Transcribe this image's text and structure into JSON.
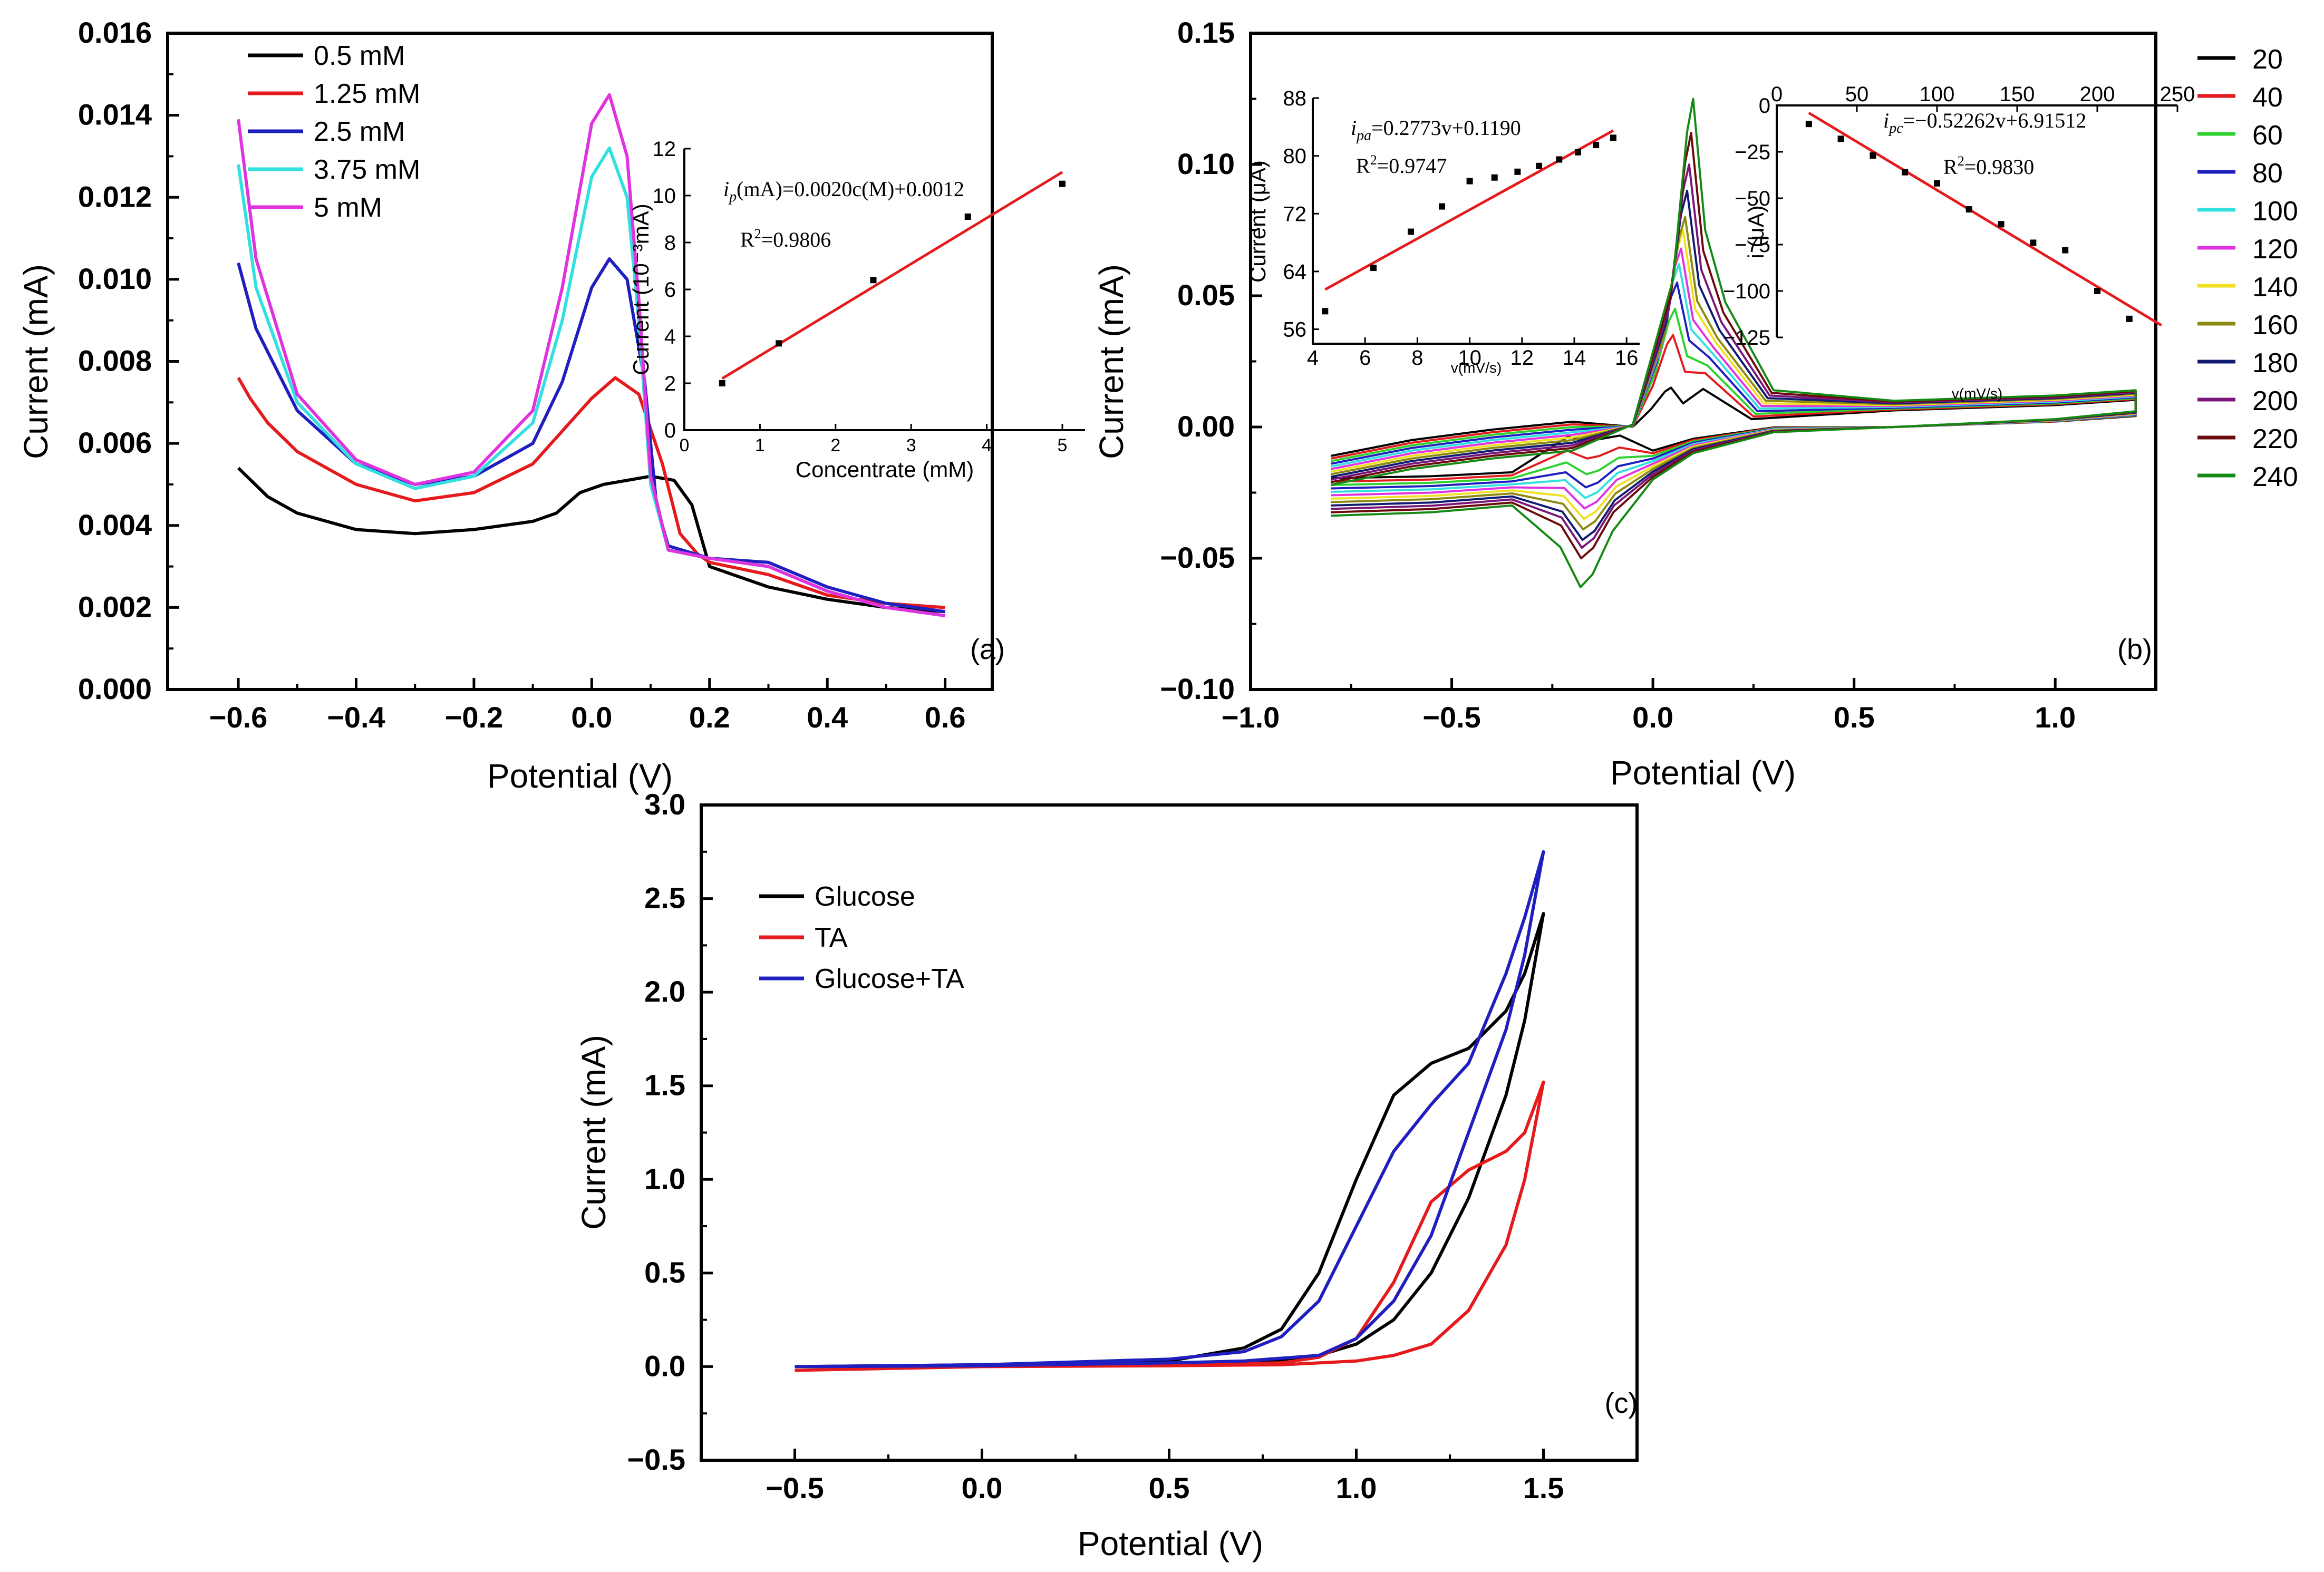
{
  "colors": {
    "black": "#000000",
    "red": "#e41a1c",
    "blue": "#1f1fbf",
    "cyan": "#33e0e0",
    "magenta": "#e033e0",
    "fit": "#e41a1c",
    "scan": [
      "#000000",
      "#e41a1c",
      "#2fd12f",
      "#1f1fbf",
      "#33e0e0",
      "#e033e0",
      "#f0e020",
      "#8a8a10",
      "#101a70",
      "#7a157a",
      "#6a0a0a",
      "#148a14"
    ]
  },
  "panels": {
    "a": {
      "label": "(a)",
      "chart_data": {
        "type": "line",
        "xlabel": "Potential (V)",
        "ylabel": "Current (mA)",
        "xlim": [
          -0.72,
          0.68
        ],
        "ylim": [
          0.0,
          0.016
        ],
        "xticks": [
          "−0.6",
          "−0.4",
          "−0.2",
          "0.0",
          "0.2",
          "0.4",
          "0.6"
        ],
        "yticks": [
          "0.000",
          "0.002",
          "0.004",
          "0.006",
          "0.008",
          "0.010",
          "0.012",
          "0.014",
          "0.016"
        ],
        "legend_position": "top-left",
        "series": [
          {
            "name": "0.5 mM",
            "color": "#000000",
            "x": [
              -0.6,
              -0.55,
              -0.5,
              -0.4,
              -0.3,
              -0.2,
              -0.1,
              -0.06,
              -0.02,
              0.02,
              0.06,
              0.1,
              0.14,
              0.17,
              0.2,
              0.3,
              0.4,
              0.5,
              0.6
            ],
            "y": [
              0.0054,
              0.0047,
              0.0043,
              0.0039,
              0.0038,
              0.0039,
              0.0041,
              0.0043,
              0.0048,
              0.005,
              0.0051,
              0.0052,
              0.0051,
              0.0045,
              0.003,
              0.0025,
              0.0022,
              0.002,
              0.0019
            ]
          },
          {
            "name": "1.25 mM",
            "color": "#e41a1c",
            "x": [
              -0.6,
              -0.58,
              -0.55,
              -0.5,
              -0.4,
              -0.3,
              -0.2,
              -0.1,
              0.0,
              0.04,
              0.08,
              0.12,
              0.15,
              0.18,
              0.2,
              0.3,
              0.4,
              0.5,
              0.6
            ],
            "y": [
              0.0076,
              0.0071,
              0.0065,
              0.0058,
              0.005,
              0.0046,
              0.0048,
              0.0055,
              0.0071,
              0.0076,
              0.0072,
              0.0055,
              0.0038,
              0.0033,
              0.0031,
              0.0028,
              0.0023,
              0.0021,
              0.002
            ]
          },
          {
            "name": "2.5 mM",
            "color": "#1f1fbf",
            "x": [
              -0.6,
              -0.57,
              -0.5,
              -0.4,
              -0.3,
              -0.2,
              -0.1,
              -0.05,
              0.0,
              0.03,
              0.06,
              0.09,
              0.11,
              0.13,
              0.2,
              0.3,
              0.4,
              0.5,
              0.6
            ],
            "y": [
              0.0104,
              0.0088,
              0.0068,
              0.0055,
              0.005,
              0.0052,
              0.006,
              0.0075,
              0.0098,
              0.0105,
              0.01,
              0.0075,
              0.0045,
              0.0035,
              0.0032,
              0.0031,
              0.0025,
              0.0021,
              0.0019
            ]
          },
          {
            "name": "3.75 mM",
            "color": "#33e0e0",
            "x": [
              -0.6,
              -0.57,
              -0.5,
              -0.4,
              -0.3,
              -0.2,
              -0.1,
              -0.05,
              0.0,
              0.03,
              0.06,
              0.08,
              0.1,
              0.13,
              0.2,
              0.3,
              0.4,
              0.5,
              0.6
            ],
            "y": [
              0.0128,
              0.0098,
              0.007,
              0.0055,
              0.0049,
              0.0052,
              0.0065,
              0.009,
              0.0125,
              0.0132,
              0.012,
              0.009,
              0.005,
              0.0034,
              0.0032,
              0.003,
              0.0024,
              0.002,
              0.0018
            ]
          },
          {
            "name": "5 mM",
            "color": "#e033e0",
            "x": [
              -0.6,
              -0.57,
              -0.5,
              -0.4,
              -0.3,
              -0.2,
              -0.1,
              -0.05,
              0.0,
              0.03,
              0.06,
              0.08,
              0.1,
              0.13,
              0.2,
              0.3,
              0.4,
              0.5,
              0.6
            ],
            "y": [
              0.0139,
              0.0105,
              0.0072,
              0.0056,
              0.005,
              0.0053,
              0.0068,
              0.0098,
              0.0138,
              0.0145,
              0.013,
              0.0095,
              0.0052,
              0.0034,
              0.0032,
              0.003,
              0.0024,
              0.002,
              0.0018
            ]
          }
        ]
      },
      "inset": {
        "type": "scatter",
        "xlabel": "Concentrate (mM)",
        "ylabel": "Current (10⁻³mA)",
        "xlim": [
          0,
          5.3
        ],
        "ylim": [
          0,
          12
        ],
        "xticks": [
          "0",
          "1",
          "2",
          "3",
          "4",
          "5"
        ],
        "yticks": [
          "0",
          "2",
          "4",
          "6",
          "8",
          "10",
          "12"
        ],
        "points_x": [
          0.5,
          1.25,
          2.5,
          3.75,
          5.0
        ],
        "points_y": [
          2.0,
          3.7,
          6.4,
          9.1,
          10.5
        ],
        "fit_x": [
          0.5,
          5.0
        ],
        "fit_y": [
          2.2,
          11.0
        ],
        "eq_i": "i",
        "eq_sub": "p",
        "eq_rest": "(mA)=0.0020c(M)+0.0012",
        "r2_pre": "R",
        "r2_sup": "2",
        "r2_val": "=0.9806"
      }
    },
    "b": {
      "label": "(b)",
      "chart_data": {
        "type": "line",
        "xlabel": "Potential (V)",
        "ylabel": "Current (mA)",
        "xlim": [
          -1.0,
          1.25
        ],
        "ylim": [
          -0.1,
          0.15
        ],
        "xticks": [
          "−1.0",
          "−0.5",
          "0.0",
          "0.5",
          "1.0"
        ],
        "yticks": [
          "−0.10",
          "−0.05",
          "0.00",
          "0.05",
          "0.10",
          "0.15"
        ],
        "legend_position": "right",
        "legend": [
          "20",
          "40",
          "60",
          "80",
          "100",
          "120",
          "140",
          "160",
          "180",
          "200",
          "220",
          "240"
        ],
        "scan_rates": [
          20,
          40,
          60,
          80,
          100,
          120,
          140,
          160,
          180,
          200,
          220,
          240
        ],
        "anodic_peaks": [
          0.015,
          0.035,
          0.045,
          0.055,
          0.062,
          0.068,
          0.075,
          0.08,
          0.09,
          0.1,
          0.112,
          0.125
        ],
        "cathodic_peaks": [
          -0.005,
          -0.012,
          -0.018,
          -0.023,
          -0.027,
          -0.031,
          -0.035,
          -0.039,
          -0.043,
          -0.046,
          -0.05,
          -0.061
        ]
      },
      "inset_left": {
        "type": "scatter",
        "xlabel": "v(mV/s)",
        "ylabel": "Current (μA)",
        "xlim": [
          4,
          16.5
        ],
        "ylim": [
          54,
          88
        ],
        "xticks": [
          "4",
          "6",
          "8",
          "10",
          "12",
          "14",
          "16"
        ],
        "yticks": [
          "56",
          "64",
          "72",
          "80",
          "88"
        ],
        "points_x": [
          4.47,
          6.32,
          7.75,
          8.94,
          10.0,
          10.95,
          11.83,
          12.65,
          13.42,
          14.14,
          14.83,
          15.49
        ],
        "points_y": [
          58.5,
          64.5,
          69.5,
          73.0,
          76.5,
          77.0,
          77.8,
          78.6,
          79.5,
          80.5,
          81.5,
          82.5
        ],
        "fit_x": [
          4.47,
          15.49
        ],
        "fit_y": [
          61.5,
          83.5
        ],
        "eq_i": "i",
        "eq_sub": "pa",
        "eq_rest": "=0.2773v+0.1190",
        "r2_pre": "R",
        "r2_sup": "2",
        "r2_val": "=0.9747"
      },
      "inset_right": {
        "type": "scatter",
        "xlabel": "v(mV/s)",
        "ylabel": "i (μA)",
        "xlim": [
          0,
          250
        ],
        "ylim": [
          -125,
          0
        ],
        "xticks": [
          "0",
          "50",
          "100",
          "150",
          "200",
          "250"
        ],
        "yticks": [
          "0",
          "−25",
          "−50",
          "−75",
          "−100",
          "−125"
        ],
        "points_x": [
          20,
          40,
          60,
          80,
          100,
          120,
          140,
          160,
          180,
          200,
          220
        ],
        "points_y": [
          -10,
          -18,
          -27,
          -36,
          -42,
          -56,
          -64,
          -74,
          -78,
          -100,
          -115
        ],
        "fit_x": [
          20,
          240
        ],
        "fit_y": [
          -4.0,
          -118.5
        ],
        "eq_i": "i",
        "eq_sub": "pc",
        "eq_rest": "=−0.52262v+6.91512",
        "r2_pre": "R",
        "r2_sup": "2",
        "r2_val": "=0.9830"
      }
    },
    "c": {
      "label": "(c)",
      "chart_data": {
        "type": "line",
        "xlabel": "Potential (V)",
        "ylabel": "Current (mA)",
        "xlim": [
          -0.75,
          1.75
        ],
        "ylim": [
          -0.5,
          3.0
        ],
        "xticks": [
          "−0.5",
          "0.0",
          "0.5",
          "1.0",
          "1.5"
        ],
        "yticks": [
          "−0.5",
          "0.0",
          "0.5",
          "1.0",
          "1.5",
          "2.0",
          "2.5",
          "3.0"
        ],
        "legend_position": "top-left",
        "series": [
          {
            "name": "Glucose",
            "color": "#000000",
            "x": [
              -0.5,
              0.0,
              0.5,
              0.7,
              0.8,
              0.9,
              1.0,
              1.1,
              1.2,
              1.3,
              1.4,
              1.45,
              1.5,
              1.5,
              1.45,
              1.4,
              1.3,
              1.2,
              1.1,
              1.0,
              0.9,
              0.8,
              0.6,
              0.3,
              0.0,
              -0.5
            ],
            "y": [
              0.0,
              0.01,
              0.03,
              0.1,
              0.2,
              0.5,
              1.0,
              1.45,
              1.62,
              1.7,
              1.9,
              2.1,
              2.42,
              2.42,
              1.85,
              1.45,
              0.9,
              0.5,
              0.25,
              0.12,
              0.06,
              0.03,
              0.015,
              0.01,
              0.005,
              0.0
            ]
          },
          {
            "name": "TA",
            "color": "#e41a1c",
            "x": [
              -0.5,
              0.0,
              0.5,
              0.8,
              0.9,
              1.0,
              1.1,
              1.2,
              1.3,
              1.4,
              1.45,
              1.5,
              1.5,
              1.45,
              1.4,
              1.3,
              1.2,
              1.1,
              1.0,
              0.8,
              0.5,
              0.0,
              -0.5
            ],
            "y": [
              -0.02,
              0.0,
              0.01,
              0.02,
              0.05,
              0.15,
              0.45,
              0.88,
              1.05,
              1.15,
              1.25,
              1.52,
              1.52,
              1.0,
              0.65,
              0.3,
              0.12,
              0.06,
              0.03,
              0.01,
              0.005,
              0.0,
              -0.02
            ]
          },
          {
            "name": "Glucose+TA",
            "color": "#1f1fbf",
            "x": [
              -0.5,
              0.0,
              0.5,
              0.7,
              0.8,
              0.9,
              1.0,
              1.1,
              1.2,
              1.3,
              1.4,
              1.45,
              1.5,
              1.5,
              1.45,
              1.4,
              1.3,
              1.2,
              1.1,
              1.0,
              0.9,
              0.7,
              0.5,
              0.0,
              -0.5
            ],
            "y": [
              0.0,
              0.01,
              0.04,
              0.08,
              0.16,
              0.35,
              0.75,
              1.15,
              1.4,
              1.62,
              2.1,
              2.4,
              2.75,
              2.75,
              2.2,
              1.8,
              1.25,
              0.7,
              0.35,
              0.15,
              0.06,
              0.03,
              0.02,
              0.005,
              0.0
            ]
          }
        ]
      }
    }
  }
}
